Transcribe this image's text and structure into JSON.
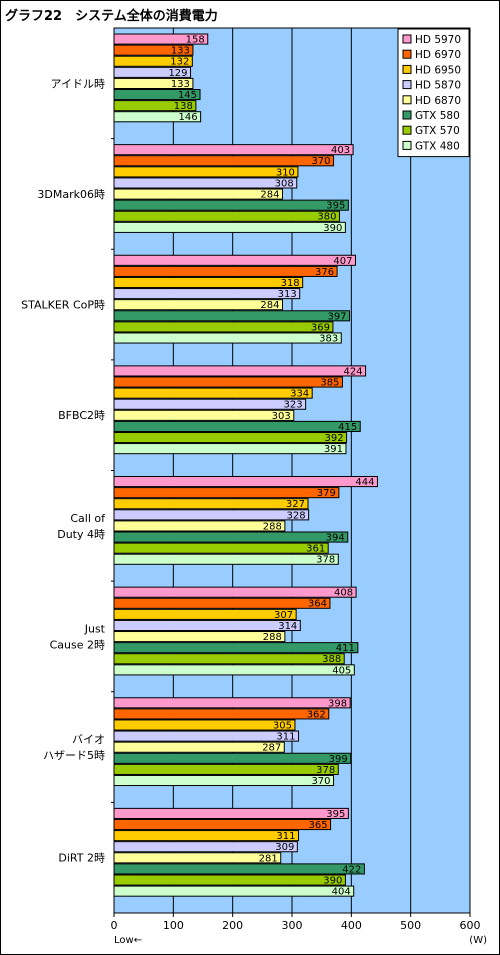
{
  "title": "グラフ22　システム全体の消費電力",
  "chart_data": {
    "type": "bar",
    "orientation": "horizontal",
    "title": "グラフ22　システム全体の消費電力",
    "categories": [
      "アイドル時",
      "3DMark06時",
      "STALKER CoP時",
      "BFBC2時",
      "Call of Duty 4時",
      "Just Cause 2時",
      "バイオハザード5時",
      "DiRT 2時"
    ],
    "category_lines": [
      [
        "アイドル時"
      ],
      [
        "3DMark06時"
      ],
      [
        "STALKER CoP時"
      ],
      [
        "BFBC2時"
      ],
      [
        "Call of",
        "Duty 4時"
      ],
      [
        "Just",
        "Cause 2時"
      ],
      [
        "バイオ",
        "ハザード5時"
      ],
      [
        "DiRT 2時"
      ]
    ],
    "series": [
      {
        "name": "HD 5970",
        "color": "#ff99cc",
        "values": [
          158,
          403,
          407,
          424,
          444,
          408,
          398,
          395
        ]
      },
      {
        "name": "HD 6970",
        "color": "#ff6600",
        "values": [
          133,
          370,
          376,
          385,
          379,
          364,
          362,
          365
        ]
      },
      {
        "name": "HD 6950",
        "color": "#ffcc00",
        "values": [
          132,
          310,
          318,
          334,
          327,
          307,
          305,
          311
        ]
      },
      {
        "name": "HD 5870",
        "color": "#ccccff",
        "values": [
          129,
          308,
          313,
          323,
          328,
          314,
          311,
          309
        ]
      },
      {
        "name": "HD 6870",
        "color": "#ffff99",
        "values": [
          133,
          284,
          284,
          303,
          288,
          288,
          287,
          281
        ]
      },
      {
        "name": "GTX 580",
        "color": "#339966",
        "values": [
          145,
          395,
          397,
          415,
          394,
          411,
          399,
          422
        ]
      },
      {
        "name": "GTX 570",
        "color": "#99cc00",
        "values": [
          138,
          380,
          369,
          392,
          361,
          388,
          378,
          390
        ]
      },
      {
        "name": "GTX 480",
        "color": "#ccffcc",
        "values": [
          146,
          390,
          383,
          391,
          378,
          405,
          370,
          404
        ]
      }
    ],
    "xlim": [
      0,
      600
    ],
    "xticks": [
      0,
      100,
      200,
      300,
      400,
      500,
      600
    ],
    "xunit": "(W)",
    "xnote": "Low←",
    "grid": true,
    "plot_background": "#99ccff",
    "legend_position": "top-right"
  }
}
